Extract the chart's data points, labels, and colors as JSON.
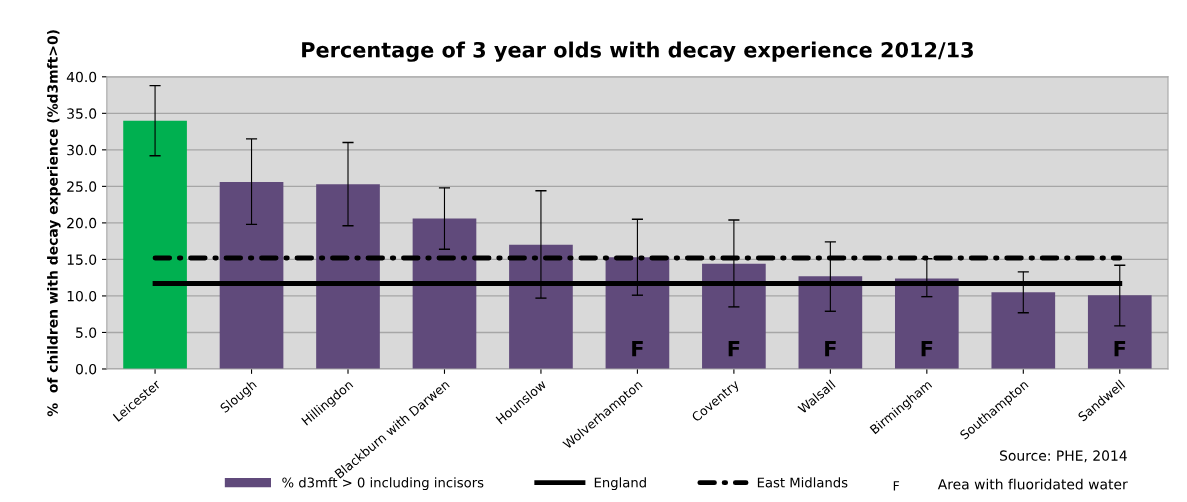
{
  "chart_data": {
    "type": "bar",
    "title": "Percentage of 3 year olds with decay experience 2012/13",
    "ylabel": "%  of children with decay experience (%d3mft>0)",
    "categories": [
      "Leicester",
      "Slough",
      "Hillingdon",
      "Blackburn with Darwen",
      "Hounslow",
      "Wolverhampton",
      "Coventry",
      "Walsall",
      "Birmingham",
      "Southampton",
      "Sandwell"
    ],
    "series": [
      {
        "name": "% d3mft > 0 including incisors",
        "value_labels": [
          null,
          null,
          null,
          null,
          null,
          "F",
          "F",
          "F",
          "F",
          null,
          "F"
        ],
        "color": "#604a7b",
        "colors": [
          "#00b050",
          "#604a7b",
          "#604a7b",
          "#604a7b",
          "#604a7b",
          "#604a7b",
          "#604a7b",
          "#604a7b",
          "#604a7b",
          "#604a7b",
          "#604a7b"
        ],
        "values": [
          34.0,
          25.6,
          25.3,
          20.6,
          17.0,
          15.3,
          14.4,
          12.7,
          12.4,
          10.5,
          10.1
        ],
        "errors": [
          [
            29.2,
            38.8
          ],
          [
            19.8,
            31.5
          ],
          [
            19.6,
            31.0
          ],
          [
            16.4,
            24.8
          ],
          [
            9.7,
            24.4
          ],
          [
            10.1,
            20.5
          ],
          [
            8.5,
            20.4
          ],
          [
            7.9,
            17.4
          ],
          [
            9.9,
            15.1
          ],
          [
            7.7,
            13.3
          ],
          [
            5.9,
            14.2
          ]
        ]
      },
      {
        "name": "England",
        "type": "line",
        "color": "#000000",
        "line_style": "solid",
        "values": [
          11.7,
          11.7,
          11.7,
          11.7,
          11.7,
          11.7,
          11.7,
          11.7,
          11.7,
          11.7,
          11.7
        ]
      },
      {
        "name": "East Midlands",
        "type": "line",
        "color": "#000000",
        "line_style": "dashdot",
        "values": [
          15.2,
          15.2,
          15.2,
          15.2,
          15.2,
          15.2,
          15.2,
          15.2,
          15.2,
          15.2,
          15.2
        ]
      }
    ],
    "ylim": [
      0,
      40
    ],
    "yticks": [
      {
        "value": 0,
        "label": "0.0"
      },
      {
        "value": 5,
        "label": "5.0"
      },
      {
        "value": 10,
        "label": "10.0"
      },
      {
        "value": 15,
        "label": "15.0"
      },
      {
        "value": 20,
        "label": "20.0"
      },
      {
        "value": 25,
        "label": "25.0"
      },
      {
        "value": 30,
        "label": "30.0"
      },
      {
        "value": 35,
        "label": "35.0"
      },
      {
        "value": 40,
        "label": "40.0"
      }
    ],
    "grid": "y",
    "legend": "bottom",
    "annotations": [
      "Source: PHE, 2014",
      "F",
      "Area with fluoridated water"
    ]
  }
}
